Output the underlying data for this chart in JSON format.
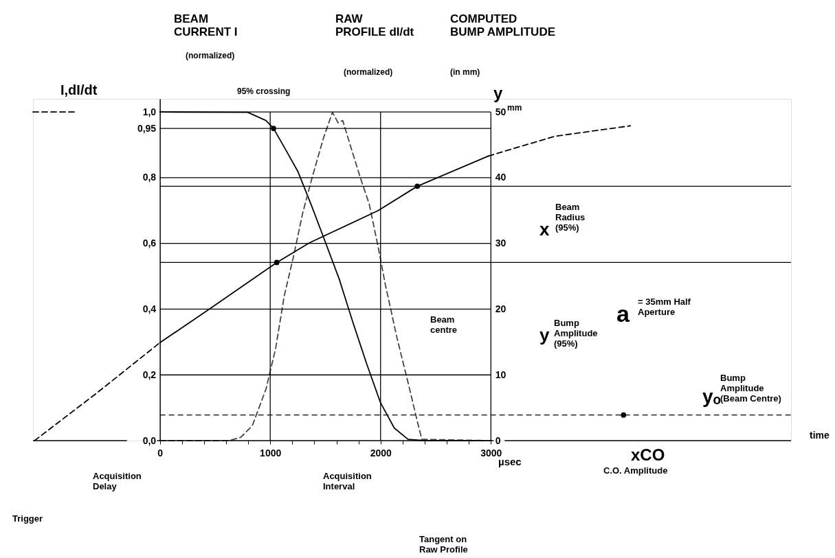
{
  "chart_data": {
    "type": "line",
    "ylabel": "I,dI/dt",
    "y2label": "y",
    "xlabel": "time",
    "xlim": [
      -1150,
      5720
    ],
    "ylim": [
      0,
      1.04
    ],
    "y2lim": [
      0,
      52
    ],
    "xticks": [
      0,
      {
        "value": 200,
        "label": null
      },
      {
        "value": 400,
        "label": null
      },
      {
        "value": 600,
        "label": null
      },
      {
        "value": 800,
        "label": null
      },
      1000,
      {
        "value": 1200,
        "label": null
      },
      {
        "value": 1400,
        "label": null
      },
      {
        "value": 1600,
        "label": null
      },
      {
        "value": 1800,
        "label": null
      },
      2000,
      {
        "value": 2200,
        "label": null
      },
      {
        "value": 2400,
        "label": null
      },
      {
        "value": 2600,
        "label": null
      },
      {
        "value": 2800,
        "label": null
      },
      3000
    ],
    "yticks": [
      {
        "value": 0,
        "label": "0,0"
      },
      {
        "value": 0.2,
        "label": "0,2"
      },
      {
        "value": 0.4,
        "label": "0,4"
      },
      {
        "value": 0.6,
        "label": "0,6"
      },
      {
        "value": 0.8,
        "label": "0,8"
      },
      {
        "value": 0.95,
        "label": "0,95"
      },
      {
        "value": 1.0,
        "label": "1,0"
      }
    ],
    "y2ticks": [
      0,
      10,
      20,
      30,
      40,
      50
    ],
    "series": [
      {
        "color": "#000000",
        "line_style": "dashed",
        "x": [
          -1150,
          -760
        ],
        "values": [
          1.0,
          1.0
        ]
      },
      {
        "color": "#000000",
        "line_style": "solid",
        "x": [
          0,
          796,
          962,
          1030,
          1149,
          1252,
          1377,
          1502,
          1626,
          1751,
          1875,
          2000,
          2125,
          2249,
          2400,
          3000
        ],
        "values": [
          1.0,
          0.999,
          0.974,
          0.95,
          0.88,
          0.818,
          0.713,
          0.602,
          0.491,
          0.358,
          0.233,
          0.115,
          0.038,
          0.004,
          0,
          0
        ]
      },
      {
        "color": "#444444",
        "line_style": "dashed",
        "x": [
          0,
          629,
          733,
          837,
          962,
          1050,
          1128,
          1211,
          1294,
          1377,
          1481,
          1564,
          1616,
          1657,
          1730,
          1813,
          1897,
          1979,
          2042,
          2146,
          2249,
          2333,
          2374,
          3000
        ],
        "values": [
          0,
          0,
          0.01,
          0.045,
          0.157,
          0.282,
          0.442,
          0.56,
          0.692,
          0.797,
          0.919,
          0.999,
          0.967,
          0.974,
          0.894,
          0.804,
          0.72,
          0.588,
          0.477,
          0.317,
          0.177,
          0.059,
          0.004,
          0
        ]
      },
      {
        "type": "scatter",
        "color": "#000000",
        "marker": "circle",
        "x": [
          1030
        ],
        "values": [
          0.95
        ]
      },
      {
        "axis": "y2",
        "color": "#000000",
        "line_style": "dashed",
        "x": [
          -1136,
          -575,
          0
        ],
        "values": [
          0,
          7.2,
          14.9
        ]
      },
      {
        "axis": "y2",
        "color": "#000000",
        "line_style": "solid",
        "x": [
          0,
          422,
          1059,
          1356,
          1979,
          2333,
          2977
        ],
        "values": [
          14.9,
          19.7,
          27.1,
          30.1,
          35.0,
          38.7,
          43.3
        ]
      },
      {
        "axis": "y2",
        "color": "#000000",
        "line_style": "dashed",
        "x": [
          2977,
          3579,
          4264
        ],
        "values": [
          43.3,
          46.3,
          47.9
        ]
      },
      {
        "type": "scatter",
        "axis": "y2",
        "color": "#000000",
        "marker": "circle",
        "x": [
          1059,
          2333,
          4202
        ],
        "values": [
          27.1,
          38.7,
          3.9
        ]
      }
    ],
    "ref_lines": [
      {
        "axis": "y",
        "value": 0.2
      },
      {
        "axis": "y",
        "value": 0.4
      },
      {
        "axis": "y",
        "value": 0.6
      },
      {
        "axis": "y",
        "value": 0.8
      },
      {
        "axis": "y",
        "value": 0.95
      },
      {
        "axis": "y",
        "value": 1.0
      },
      {
        "axis": "x",
        "value": 1000
      },
      {
        "axis": "x",
        "value": 2000
      },
      {
        "axis": "x",
        "value": 3000
      },
      {
        "axis": "y2",
        "value": 38.7
      },
      {
        "axis": "y2",
        "value": 27.1
      },
      {
        "axis": "y2",
        "value": 3.9,
        "line_style": "dashed"
      }
    ],
    "annotations": [
      "BEAM\nCURRENT I",
      "(normalized)",
      "RAW\nPROFILE dI/dt",
      "(normalized)",
      "COMPUTED\nBUMP  AMPLITUDE",
      "(in mm)",
      "95% crossing",
      "x",
      "Beam\nRadius\n(95%)",
      "y",
      "Bump\nAmplitude\n(95%)",
      "a",
      "= 35mm  Half\nAperture",
      "yₒ",
      "Bump\nAmplitude\n(Beam  Centre)",
      "Beam\ncentre",
      "xCO",
      "C.O. Amplitude",
      "Trigger",
      "Acquisition\nDelay",
      "Acquisition\nInterval",
      "Tangent  on\nRaw  Profile",
      "µsec",
      "mm"
    ]
  }
}
